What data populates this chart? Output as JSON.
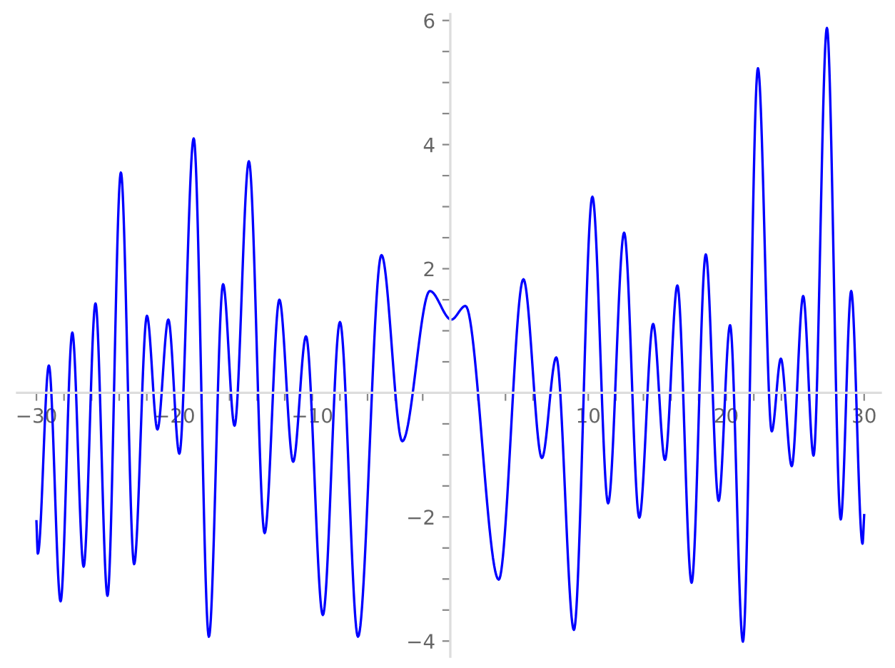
{
  "chart_data": {
    "type": "line",
    "color": "#0000ff",
    "line_style": "solid",
    "marker": "none",
    "grid": false,
    "legend": false,
    "x": [
      -30,
      -29.9,
      -29.1,
      -28.25,
      -27.4,
      -26.58,
      -25.72,
      -24.85,
      -23.88,
      -22.92,
      -21.99,
      -21.23,
      -20.44,
      -19.64,
      -18.6,
      -17.5,
      -16.47,
      -15.64,
      -14.6,
      -13.46,
      -12.39,
      -11.39,
      -10.46,
      -9.24,
      -8.0,
      -6.69,
      -4.99,
      -3.48,
      -1.48,
      0.07,
      1.1,
      3.51,
      5.3,
      6.64,
      7.68,
      8.96,
      10.3,
      11.44,
      12.6,
      13.7,
      14.7,
      15.56,
      16.46,
      17.49,
      18.52,
      19.45,
      20.28,
      21.21,
      22.3,
      23.3,
      23.96,
      24.75,
      25.58,
      26.33,
      27.3,
      28.3,
      29.06,
      29.88,
      30
    ],
    "values": [
      -2.07,
      -2.59,
      0.44,
      -3.36,
      0.97,
      -2.8,
      1.44,
      -3.27,
      3.55,
      -2.76,
      1.24,
      -0.59,
      1.18,
      -0.98,
      4.1,
      -3.93,
      1.75,
      -0.53,
      3.73,
      -2.26,
      1.5,
      -1.11,
      0.91,
      -3.58,
      1.14,
      -3.93,
      2.22,
      -0.78,
      1.64,
      1.18,
      1.4,
      -3.01,
      1.83,
      -1.05,
      0.57,
      -3.82,
      3.16,
      -1.78,
      2.58,
      -2.01,
      1.11,
      -1.08,
      1.73,
      -3.06,
      2.23,
      -1.74,
      1.09,
      -4.01,
      5.23,
      -0.62,
      0.55,
      -1.18,
      1.56,
      -1.01,
      5.88,
      -2.04,
      1.64,
      -2.43,
      -1.97
    ],
    "xlim": [
      -31.4,
      31.2
    ],
    "ylim": [
      -4.25,
      6.1
    ],
    "xticks": [
      -30,
      {
        "value": -28,
        "label": null
      },
      {
        "value": -26,
        "label": null
      },
      {
        "value": -24,
        "label": null
      },
      {
        "value": -22,
        "label": null
      },
      -20,
      {
        "value": -18,
        "label": null
      },
      {
        "value": -16,
        "label": null
      },
      {
        "value": -14,
        "label": null
      },
      {
        "value": -12,
        "label": null
      },
      -10,
      {
        "value": -8,
        "label": null
      },
      {
        "value": -6,
        "label": null
      },
      {
        "value": -4,
        "label": null
      },
      {
        "value": -2,
        "label": null
      },
      {
        "value": 2,
        "label": null
      },
      {
        "value": 4,
        "label": null
      },
      {
        "value": 6,
        "label": null
      },
      {
        "value": 8,
        "label": null
      },
      10,
      {
        "value": 12,
        "label": null
      },
      {
        "value": 14,
        "label": null
      },
      {
        "value": 16,
        "label": null
      },
      {
        "value": 18,
        "label": null
      },
      20,
      {
        "value": 22,
        "label": null
      },
      {
        "value": 24,
        "label": null
      },
      {
        "value": 26,
        "label": null
      },
      {
        "value": 28,
        "label": null
      },
      30
    ],
    "yticks": [
      -4,
      {
        "value": -3.5,
        "label": null
      },
      {
        "value": -3,
        "label": null
      },
      {
        "value": -2.5,
        "label": null
      },
      -2,
      {
        "value": -1.5,
        "label": null
      },
      {
        "value": -1,
        "label": null
      },
      {
        "value": -0.5,
        "label": null
      },
      {
        "value": 0.5,
        "label": null
      },
      {
        "value": 1,
        "label": null
      },
      {
        "value": 1.5,
        "label": null
      },
      2,
      {
        "value": 2.5,
        "label": null
      },
      {
        "value": 3,
        "label": null
      },
      {
        "value": 3.5,
        "label": null
      },
      4,
      {
        "value": 4.5,
        "label": null
      },
      {
        "value": 5,
        "label": null
      },
      {
        "value": 5.5,
        "label": null
      },
      6
    ]
  }
}
